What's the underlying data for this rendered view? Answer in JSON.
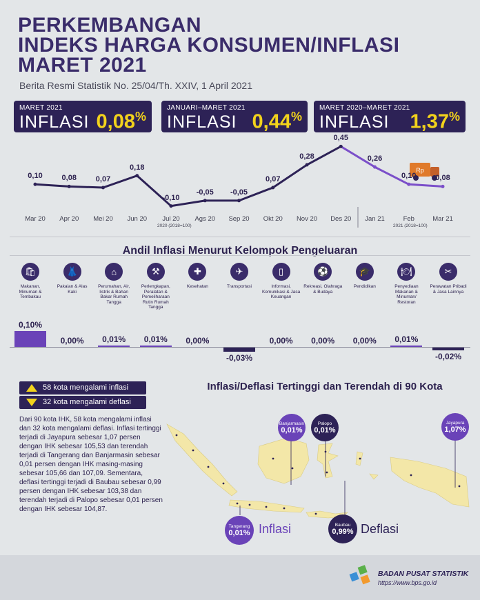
{
  "header": {
    "title_lines": [
      "PERKEMBANGAN",
      "INDEKS HARGA KONSUMEN/INFLASI",
      "MARET 2021"
    ],
    "subtitle": "Berita Resmi Statistik No. 25/04/Th. XXIV, 1 April 2021"
  },
  "cards": [
    {
      "label": "MARET 2021",
      "word": "INFLASI",
      "value": "0,08",
      "unit": "%"
    },
    {
      "label": "JANUARI–MARET 2021",
      "word": "INFLASI",
      "value": "0,44",
      "unit": "%"
    },
    {
      "label": "MARET 2020–MARET 2021",
      "word": "INFLASI",
      "value": "1,37",
      "unit": "%"
    }
  ],
  "chart_data": {
    "type": "line",
    "categories": [
      "Mar 20",
      "Apr 20",
      "Mei 20",
      "Jun 20",
      "Jul 20",
      "Ags 20",
      "Sep 20",
      "Okt 20",
      "Nov 20",
      "Des 20",
      "Jan 21",
      "Feb",
      "Mar 21"
    ],
    "values": [
      0.1,
      0.08,
      0.07,
      0.18,
      -0.1,
      -0.05,
      -0.05,
      0.07,
      0.28,
      0.45,
      0.26,
      0.1,
      0.08
    ],
    "value_labels": [
      "0,10",
      "0,08",
      "0,07",
      "0,18",
      "-0,10",
      "-0,05",
      "-0,05",
      "0,07",
      "0,28",
      "0,45",
      "0,26",
      "0,10",
      "0,08"
    ],
    "base_note_left": "2020 (2018=100)",
    "base_note_right": "2021 (2018=100)",
    "truck_label": "Rp",
    "colors": {
      "line_2020": "#2d2256",
      "line_2021": "#7b4fc9"
    }
  },
  "andil": {
    "title": "Andil Inflasi Menurut Kelompok Pengeluaran",
    "items": [
      {
        "label": "Makanan, Minuman & Tembakau",
        "value": 0.1,
        "value_label": "0,10%",
        "icon": "grocery-bag-icon",
        "glyph": "🛍"
      },
      {
        "label": "Pakaian & Alas Kaki",
        "value": 0.0,
        "value_label": "0,00%",
        "icon": "dress-icon",
        "glyph": "👗"
      },
      {
        "label": "Perumahan, Air, listrik & Bahan Bakar Rumah Tangga",
        "value": 0.01,
        "value_label": "0,01%",
        "icon": "house-icon",
        "glyph": "⌂"
      },
      {
        "label": "Perlengkapan, Peralatan & Pemeliharaan Rutin Rumah Tangga",
        "value": 0.01,
        "value_label": "0,01%",
        "icon": "household-tools-icon",
        "glyph": "⚒"
      },
      {
        "label": "Kesehatan",
        "value": 0.0,
        "value_label": "0,00%",
        "icon": "medical-kit-icon",
        "glyph": "✚"
      },
      {
        "label": "Transportasi",
        "value": -0.03,
        "value_label": "-0,03%",
        "icon": "airplane-icon",
        "glyph": "✈"
      },
      {
        "label": "Informasi, Komunikasi & Jasa Keuangan",
        "value": 0.0,
        "value_label": "0,00%",
        "icon": "smartphone-icon",
        "glyph": "▯"
      },
      {
        "label": "Rekreasi, Olahraga & Budaya",
        "value": 0.0,
        "value_label": "0,00%",
        "icon": "football-player-icon",
        "glyph": "⚽"
      },
      {
        "label": "Pendidikan",
        "value": 0.0,
        "value_label": "0,00%",
        "icon": "graduation-cap-icon",
        "glyph": "🎓"
      },
      {
        "label": "Penyediaan Makanan & Minuman/ Restoran",
        "value": 0.01,
        "value_label": "0,01%",
        "icon": "restaurant-icon",
        "glyph": "🍽"
      },
      {
        "label": "Perawatan Pribadi & Jasa Lainnya",
        "value": -0.02,
        "value_label": "-0,02%",
        "icon": "scissors-icon",
        "glyph": "✂"
      }
    ]
  },
  "cities": {
    "inflasi_count_text": "58 kota mengalami inflasi",
    "deflasi_count_text": "32 kota mengalami deflasi",
    "paragraph": "Dari 90 kota IHK, 58 kota mengalami inflasi dan 32 kota mengalami deflasi. Inflasi tertinggi terjadi di Jayapura sebesar 1,07 persen dengan IHK sebesar 105,53 dan terendah terjadi di Tangerang dan Banjarmasin sebesar 0,01 persen dengan IHK masing-masing sebesar 105,66 dan 107,09. Sementara, deflasi tertinggi terjadi di Baubau sebesar 0,99 persen dengan IHK sebesar 103,38 dan terendah terjadi di Palopo sebesar 0,01 persen dengan IHK sebesar 104,87.",
    "map_title": "Inflasi/Deflasi Tertinggi dan Terendah di 90 Kota",
    "bubbles": [
      {
        "city": "Banjarmasin",
        "value": "0,01%"
      },
      {
        "city": "Palopo",
        "value": "0,01%"
      },
      {
        "city": "Jayapura",
        "value": "1,07%"
      },
      {
        "city": "Tangerang",
        "value": "0,01%"
      },
      {
        "city": "Baubau",
        "value": "0,99%"
      }
    ],
    "legend_inflasi": "Inflasi",
    "legend_deflasi": "Deflasi",
    "colors": {
      "inflasi": "#6a43b8",
      "deflasi": "#2d2256",
      "map": "#f3e7a8"
    }
  },
  "footer": {
    "org": "BADAN PUSAT STATISTIK",
    "url": "https://www.bps.go.id"
  }
}
